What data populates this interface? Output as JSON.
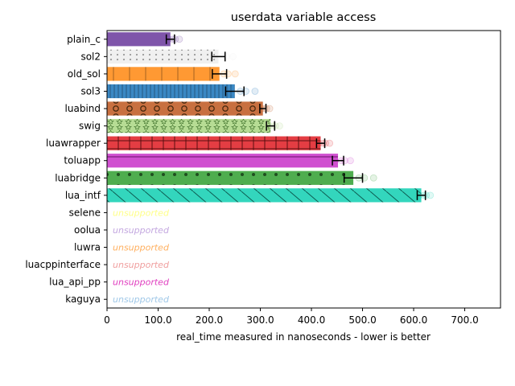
{
  "chart_data": {
    "type": "bar",
    "orientation": "horizontal",
    "title": "userdata variable access",
    "xlabel": "real_time measured in nanoseconds - lower is better",
    "ylabel": "",
    "xlim": [
      0,
      770
    ],
    "xticks": [
      0,
      100,
      200,
      300,
      400,
      500,
      600,
      700
    ],
    "xtick_labels": [
      "0",
      "100.0",
      "200.0",
      "300.0",
      "400.0",
      "500.0",
      "600.0",
      "700.0"
    ],
    "grid": false,
    "unsupported_label": "unsupported",
    "categories": [
      {
        "name": "plain_c",
        "value": 124,
        "err": 8,
        "color": "#7f55aa",
        "pattern": "none",
        "supported": true
      },
      {
        "name": "sol2",
        "value": 218,
        "err": 13,
        "color": "#f0f0f0",
        "pattern": "dots-small",
        "supported": true
      },
      {
        "name": "old_sol",
        "value": 220,
        "err": 14,
        "color": "#ff9933",
        "pattern": "vlines-wide",
        "supported": true
      },
      {
        "name": "sol3",
        "value": 250,
        "err": 18,
        "color": "#3a88c4",
        "pattern": "vlines-dense",
        "supported": true
      },
      {
        "name": "luabind",
        "value": 305,
        "err": 6,
        "color": "#c87040",
        "pattern": "circles",
        "supported": true
      },
      {
        "name": "swig",
        "value": 320,
        "err": 8,
        "color": "#b6dc94",
        "pattern": "stars",
        "supported": true
      },
      {
        "name": "luawrapper",
        "value": 418,
        "err": 8,
        "color": "#e43d43",
        "pattern": "plus",
        "supported": true
      },
      {
        "name": "toluapp",
        "value": 452,
        "err": 11,
        "color": "#d050d0",
        "pattern": "hline",
        "supported": true
      },
      {
        "name": "luabridge",
        "value": 482,
        "err": 18,
        "color": "#4fad4f",
        "pattern": "dots-big",
        "supported": true
      },
      {
        "name": "lua_intf",
        "value": 615,
        "err": 8,
        "color": "#33d6bd",
        "pattern": "diagonal",
        "supported": true
      },
      {
        "name": "selene",
        "value": 0,
        "err": 0,
        "color": "#ffff88",
        "pattern": "none",
        "supported": false
      },
      {
        "name": "oolua",
        "value": 0,
        "err": 0,
        "color": "#c4a8e0",
        "pattern": "none",
        "supported": false
      },
      {
        "name": "luwra",
        "value": 0,
        "err": 0,
        "color": "#ffb060",
        "pattern": "none",
        "supported": false
      },
      {
        "name": "luacppinterface",
        "value": 0,
        "err": 0,
        "color": "#f0a0a0",
        "pattern": "none",
        "supported": false
      },
      {
        "name": "lua_api_pp",
        "value": 0,
        "err": 0,
        "color": "#e040c0",
        "pattern": "none",
        "supported": false
      },
      {
        "name": "kaguya",
        "value": 0,
        "err": 0,
        "color": "#a0c8e8",
        "pattern": "none",
        "supported": false
      }
    ]
  }
}
